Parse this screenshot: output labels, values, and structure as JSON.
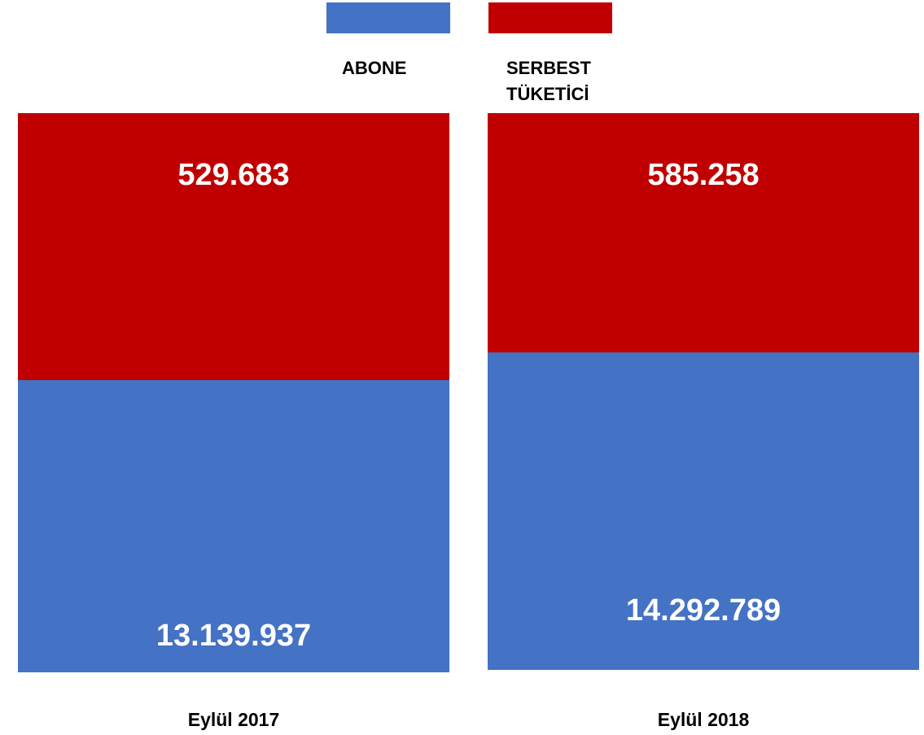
{
  "chart_data": {
    "type": "bar",
    "stacked": true,
    "normalized": true,
    "categories": [
      "Eylül 2017",
      "Eylül 2018"
    ],
    "series": [
      {
        "name": "ABONE",
        "color": "#4472C4",
        "values": [
          13139937,
          14292789
        ],
        "labels": [
          "13.139.937",
          "14.292.789"
        ]
      },
      {
        "name": "SERBEST TÜKETİCİ",
        "color": "#C00000",
        "values": [
          529683,
          585258
        ],
        "labels": [
          "529.683",
          "585.258"
        ]
      }
    ],
    "legend": {
      "placement": "top",
      "items": [
        {
          "label_lines": [
            "ABONE"
          ],
          "color": "#4472C4"
        },
        {
          "label_lines": [
            "SERBEST",
            "TÜKETİCİ"
          ],
          "color": "#C00000"
        }
      ]
    },
    "axes": {
      "visible": false
    },
    "grid": false
  }
}
